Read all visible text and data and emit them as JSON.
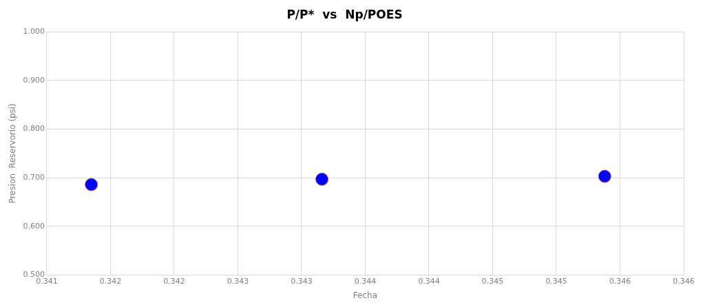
{
  "chart_data": {
    "type": "scatter",
    "title": "P/P*  vs  Np/POES",
    "xlabel": "Fecha",
    "ylabel": "Presion  Reservorio (psi)",
    "x": [
      0.34135,
      0.34316,
      0.34538
    ],
    "series": [
      {
        "color": "#0000ff",
        "values": [
          0.686,
          0.697,
          0.703
        ]
      }
    ],
    "xlim": [
      0.341,
      0.346
    ],
    "xticks": [
      {
        "value": 0.341,
        "label": "0.341"
      },
      {
        "value": 0.3415,
        "label": "0.342"
      },
      {
        "value": 0.342,
        "label": "0.342"
      },
      {
        "value": 0.3425,
        "label": "0.343"
      },
      {
        "value": 0.343,
        "label": "0.343"
      },
      {
        "value": 0.3435,
        "label": "0.344"
      },
      {
        "value": 0.344,
        "label": "0.344"
      },
      {
        "value": 0.3445,
        "label": "0.345"
      },
      {
        "value": 0.345,
        "label": "0.345"
      },
      {
        "value": 0.3455,
        "label": "0.346"
      },
      {
        "value": 0.346,
        "label": "0.346"
      }
    ],
    "ylim": [
      0.5,
      1.0
    ],
    "yticks": [
      {
        "value": 0.5,
        "label": "0.500"
      },
      {
        "value": 0.6,
        "label": "0.600"
      },
      {
        "value": 0.7,
        "label": "0.700"
      },
      {
        "value": 0.8,
        "label": "0.800"
      },
      {
        "value": 0.9,
        "label": "0.900"
      },
      {
        "value": 1.0,
        "label": "1.000"
      }
    ],
    "grid": true,
    "marker": "circle"
  }
}
